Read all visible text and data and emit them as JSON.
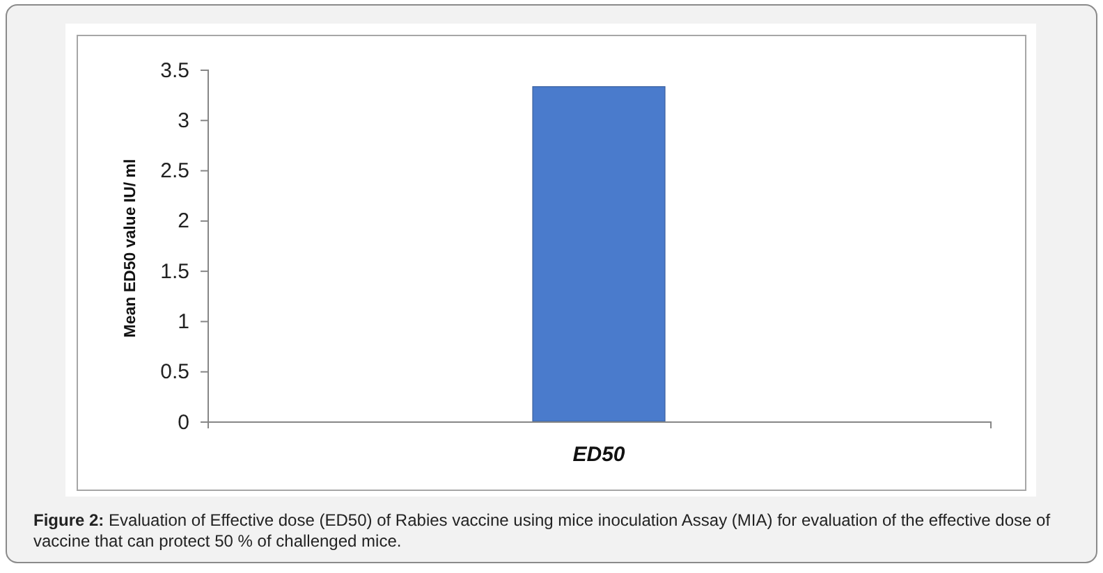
{
  "chart_data": {
    "type": "bar",
    "categories": [
      "ED50"
    ],
    "values": [
      3.33
    ],
    "color": "#4a7bcc",
    "ylabel": "Mean ED50 value IU/ ml",
    "ylim": [
      0,
      3.5
    ],
    "yticks": [
      0,
      0.5,
      1,
      1.5,
      2,
      2.5,
      3,
      3.5
    ],
    "annotations": [
      "Figure 2: Evaluation of Effective dose (ED50) of Rabies vaccine using mice inoculation Assay (MIA) for evaluation of the effective dose of vaccine that can protect 50 % of challenged mice."
    ]
  }
}
